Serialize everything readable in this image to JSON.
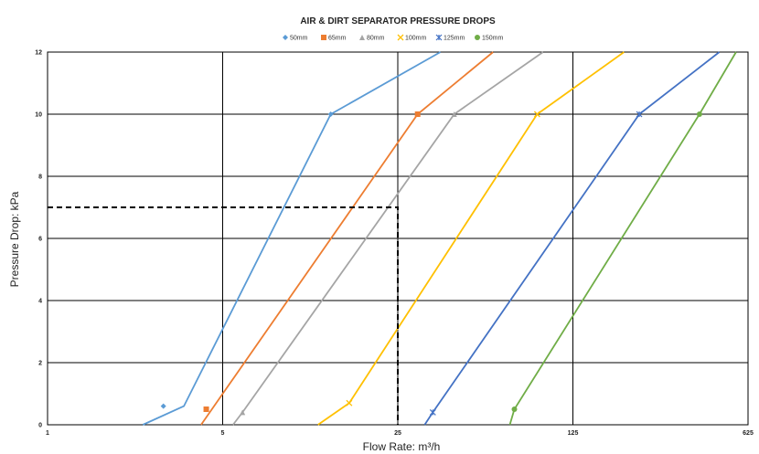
{
  "chart_data": {
    "type": "line",
    "title": "AIR & DIRT SEPARATOR PRESSURE DROPS",
    "xlabel": "Flow Rate: m³/h",
    "ylabel": "Pressure Drop: kPa",
    "x_scale": "log5",
    "xlim": [
      1,
      625
    ],
    "ylim": [
      0,
      12
    ],
    "x_ticks": [
      1,
      5,
      25,
      125,
      625
    ],
    "x_tick_labels": [
      "1",
      "5",
      "25",
      "125",
      "625"
    ],
    "y_ticks": [
      0,
      2,
      4,
      6,
      8,
      10,
      12
    ],
    "y_tick_labels": [
      "0",
      "2",
      "4",
      "6",
      "8",
      "10",
      "12"
    ],
    "grid": true,
    "legend_position": "top-center",
    "series": [
      {
        "name": "50mm",
        "color": "#5B9BD5",
        "marker": "diamond",
        "x": [
          2.4,
          3.5,
          13.5,
          37
        ],
        "y": [
          0,
          0.6,
          10,
          12
        ],
        "marker_points": [
          [
            2.9,
            0.6
          ],
          [
            13.5,
            10
          ]
        ]
      },
      {
        "name": "65mm",
        "color": "#ED7D31",
        "marker": "square",
        "x": [
          4.1,
          30,
          60
        ],
        "y": [
          0,
          10,
          12
        ],
        "marker_points": [
          [
            4.3,
            0.5
          ],
          [
            30,
            10
          ]
        ]
      },
      {
        "name": "80mm",
        "color": "#A5A5A5",
        "marker": "triangle",
        "x": [
          5.5,
          6,
          42,
          95
        ],
        "y": [
          0,
          0.4,
          10,
          12
        ],
        "marker_points": [
          [
            6,
            0.4
          ],
          [
            42,
            10
          ]
        ]
      },
      {
        "name": "100mm",
        "color": "#FFC000",
        "marker": "x",
        "x": [
          12,
          16,
          90,
          200
        ],
        "y": [
          0,
          0.7,
          10,
          12
        ],
        "marker_points": [
          [
            16,
            0.7
          ],
          [
            90,
            10
          ]
        ]
      },
      {
        "name": "125mm",
        "color": "#4472C4",
        "marker": "star",
        "x": [
          32,
          34.5,
          230,
          480
        ],
        "y": [
          0,
          0.4,
          10,
          12
        ],
        "marker_points": [
          [
            34.5,
            0.4
          ],
          [
            230,
            10
          ]
        ]
      },
      {
        "name": "150mm",
        "color": "#70AD47",
        "marker": "circle",
        "x": [
          70,
          73,
          400,
          560
        ],
        "y": [
          0,
          0.5,
          10,
          12
        ],
        "marker_points": [
          [
            73,
            0.5
          ],
          [
            400,
            10
          ]
        ]
      }
    ],
    "annotations": [
      {
        "type": "dashed-line",
        "color": "#000000",
        "points": [
          [
            1,
            7
          ],
          [
            25,
            7
          ],
          [
            25,
            0
          ]
        ]
      }
    ]
  }
}
